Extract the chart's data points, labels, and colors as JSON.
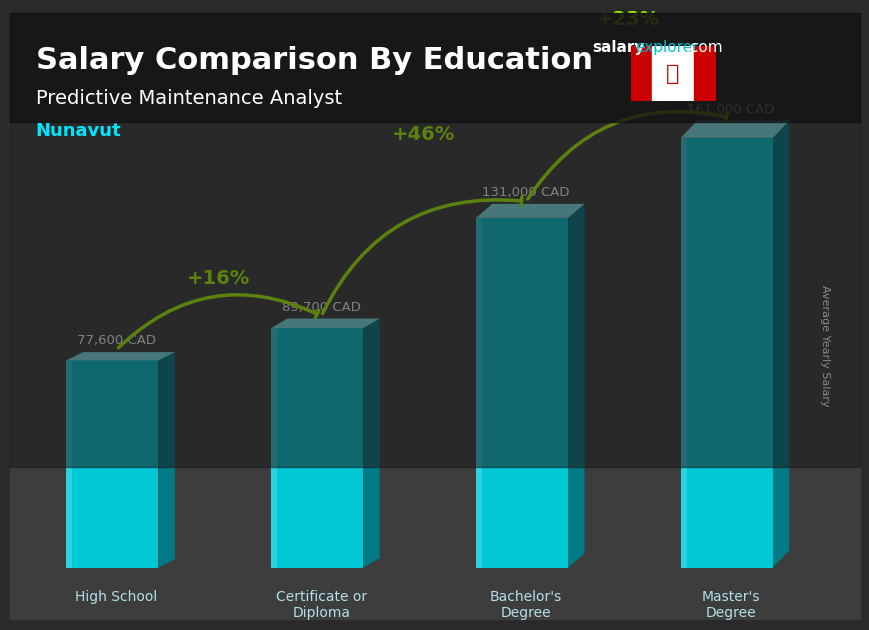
{
  "title_salary": "Salary Comparison By Education",
  "subtitle": "Predictive Maintenance Analyst",
  "location": "Nunavut",
  "categories": [
    "High School",
    "Certificate or\nDiploma",
    "Bachelor's\nDegree",
    "Master's\nDegree"
  ],
  "values": [
    77600,
    89700,
    131000,
    161000
  ],
  "labels": [
    "77,600 CAD",
    "89,700 CAD",
    "131,000 CAD",
    "161,000 CAD"
  ],
  "pct_changes": [
    "+16%",
    "+46%",
    "+23%"
  ],
  "bar_color_face": "#00bcd4",
  "bar_color_light": "#4dd0e1",
  "bar_color_side": "#0097a7",
  "background_color": "#1a1a2e",
  "text_color_white": "#ffffff",
  "text_color_cyan": "#00e5ff",
  "text_color_green": "#aaff00",
  "watermark_salary": "salary",
  "watermark_explorer": "explorer",
  "watermark_com": ".com",
  "ylabel": "Average Yearly Salary",
  "ylim": [
    0,
    185000
  ]
}
